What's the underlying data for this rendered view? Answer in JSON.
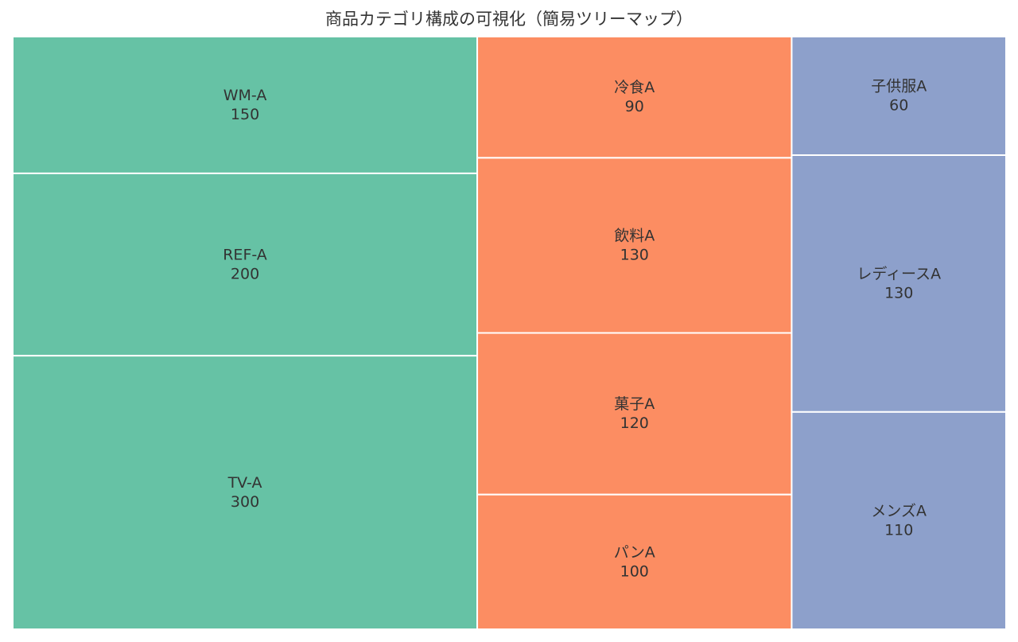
{
  "chart_data": {
    "type": "treemap",
    "title": "商品カテゴリ構成の可視化（簡易ツリーマップ）",
    "groups": [
      {
        "color": "#66c2a5",
        "items": [
          {
            "label": "WM-A",
            "value": 150
          },
          {
            "label": "REF-A",
            "value": 200
          },
          {
            "label": "TV-A",
            "value": 300
          }
        ]
      },
      {
        "color": "#fc8d62",
        "items": [
          {
            "label": "冷食A",
            "value": 90
          },
          {
            "label": "飲料A",
            "value": 130
          },
          {
            "label": "菓子A",
            "value": 120
          },
          {
            "label": "パンA",
            "value": 100
          }
        ]
      },
      {
        "color": "#8da0cb",
        "items": [
          {
            "label": "子供服A",
            "value": 60
          },
          {
            "label": "レディースA",
            "value": 130
          },
          {
            "label": "メンズA",
            "value": 110
          }
        ]
      }
    ]
  }
}
